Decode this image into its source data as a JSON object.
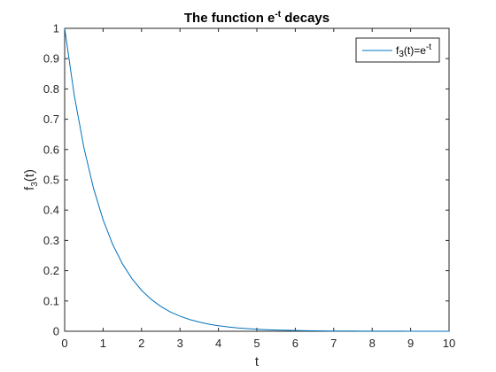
{
  "chart_data": {
    "type": "line",
    "title": {
      "prefix": "The function e",
      "sup": "-t",
      "suffix": " decays"
    },
    "xlabel": "t",
    "ylabel": {
      "base": "f",
      "sub": "3",
      "suffix": "(t)"
    },
    "xlim": [
      0,
      10
    ],
    "ylim": [
      0,
      1
    ],
    "xticks": [
      0,
      1,
      2,
      3,
      4,
      5,
      6,
      7,
      8,
      9,
      10
    ],
    "yticks": [
      0,
      0.1,
      0.2,
      0.3,
      0.4,
      0.5,
      0.6,
      0.7,
      0.8,
      0.9,
      1
    ],
    "xtick_labels": [
      "0",
      "1",
      "2",
      "3",
      "4",
      "5",
      "6",
      "7",
      "8",
      "9",
      "10"
    ],
    "ytick_labels": [
      "0",
      "0.1",
      "0.2",
      "0.3",
      "0.4",
      "0.5",
      "0.6",
      "0.7",
      "0.8",
      "0.9",
      "1"
    ],
    "grid": false,
    "legend_position": "top-right",
    "series": [
      {
        "name": {
          "base": "f",
          "sub": "3",
          "mid": "(t)=e",
          "sup": "-t"
        },
        "color": "#0072BD",
        "x": [
          0,
          0.25,
          0.5,
          0.75,
          1,
          1.25,
          1.5,
          1.75,
          2,
          2.25,
          2.5,
          2.75,
          3,
          3.25,
          3.5,
          3.75,
          4,
          4.25,
          4.5,
          4.75,
          5,
          5.25,
          5.5,
          5.75,
          6,
          6.25,
          6.5,
          6.75,
          7,
          7.25,
          7.5,
          7.75,
          8,
          8.25,
          8.5,
          8.75,
          9,
          9.25,
          9.5,
          9.75,
          10
        ],
        "y": [
          1,
          0.7788,
          0.6065,
          0.4724,
          0.3679,
          0.2865,
          0.2231,
          0.1738,
          0.1353,
          0.1054,
          0.0821,
          0.0639,
          0.0498,
          0.0388,
          0.0302,
          0.0235,
          0.0183,
          0.0143,
          0.0111,
          0.0087,
          0.0067,
          0.0052,
          0.0041,
          0.0032,
          0.0025,
          0.0019,
          0.0015,
          0.0012,
          0.0009,
          0.0007,
          0.0006,
          0.0004,
          0.0003,
          0.0003,
          0.0002,
          0.0002,
          0.0001,
          0.0001,
          0.0001,
          0.0001,
          0
        ]
      }
    ]
  }
}
